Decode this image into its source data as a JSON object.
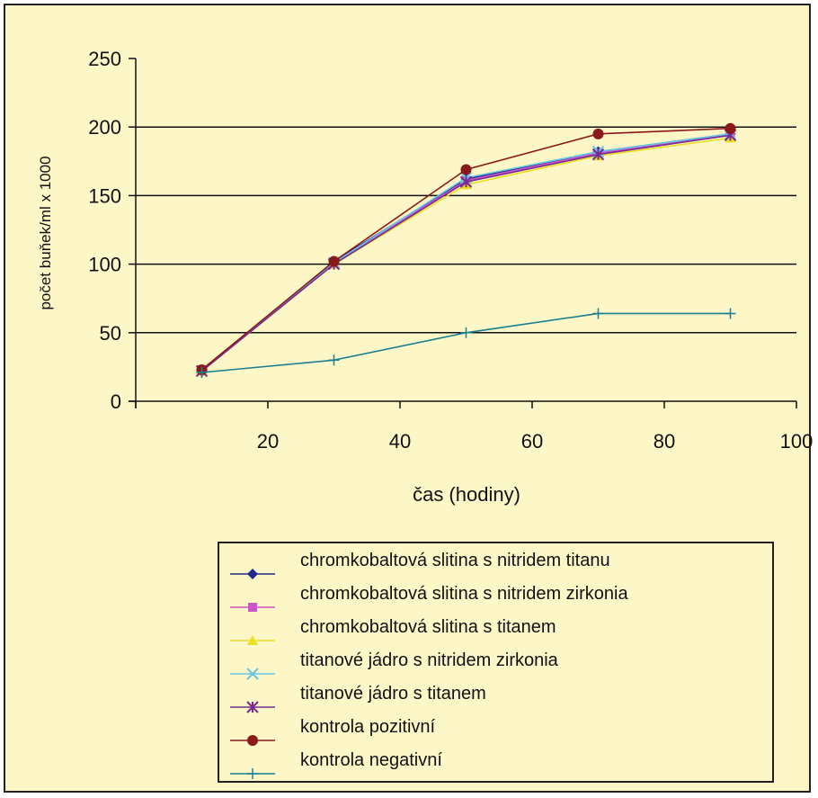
{
  "chart_data": {
    "type": "line",
    "xlabel": "čas (hodiny)",
    "ylabel": "počet buňek/ml x 1000",
    "xlim": [
      0,
      100
    ],
    "ylim": [
      0,
      250
    ],
    "xticks": [
      20,
      40,
      60,
      80,
      100
    ],
    "yticks": [
      0,
      50,
      100,
      150,
      200,
      250
    ],
    "grid": "horizontal",
    "legend_position": "bottom",
    "series": [
      {
        "name": "chromkobaltová slitina s nitridem titanu",
        "color": "#1f2a8a",
        "marker": "diamond",
        "x": [
          10,
          30,
          50,
          70,
          90
        ],
        "y": [
          22,
          102,
          162,
          182,
          195
        ]
      },
      {
        "name": "chromkobaltová slitina s nitridem zirkonia",
        "color": "#cc55cc",
        "marker": "square",
        "x": [
          10,
          30,
          50,
          70,
          90
        ],
        "y": [
          23,
          101,
          161,
          181,
          194
        ]
      },
      {
        "name": "chromkobaltová slitina s titanem",
        "color": "#e8e020",
        "marker": "triangle",
        "x": [
          10,
          30,
          50,
          70,
          90
        ],
        "y": [
          22,
          100,
          158,
          179,
          192
        ]
      },
      {
        "name": "titanové jádro s nitridem zirkonia",
        "color": "#66c6e8",
        "marker": "x",
        "x": [
          10,
          30,
          50,
          70,
          90
        ],
        "y": [
          22,
          101,
          163,
          182,
          195
        ]
      },
      {
        "name": "titanové jádro s titanem",
        "color": "#7a2a90",
        "marker": "star",
        "x": [
          10,
          30,
          50,
          70,
          90
        ],
        "y": [
          22,
          100,
          160,
          180,
          194
        ]
      },
      {
        "name": "kontrola pozitivní",
        "color": "#8a1a1a",
        "marker": "circle",
        "x": [
          10,
          30,
          50,
          70,
          90
        ],
        "y": [
          23,
          102,
          169,
          195,
          199
        ]
      },
      {
        "name": "kontrola negativní",
        "color": "#1a8090",
        "marker": "plus",
        "x": [
          10,
          30,
          50,
          70,
          90
        ],
        "y": [
          21,
          30,
          50,
          64,
          64
        ]
      }
    ]
  }
}
